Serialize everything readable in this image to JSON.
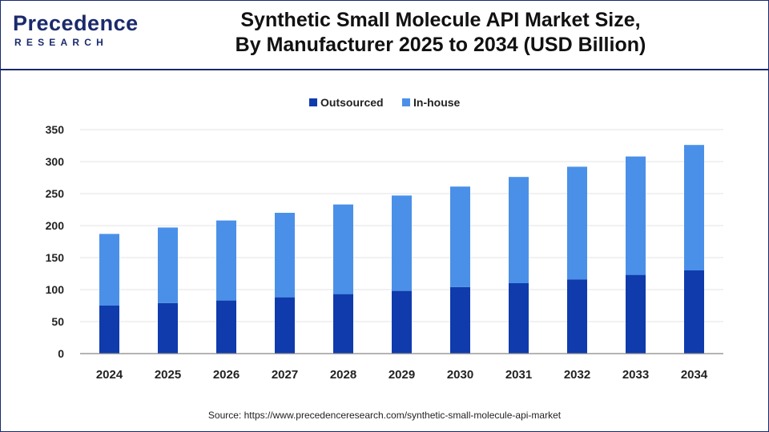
{
  "brand": {
    "logo_text": "Precedence",
    "logo_subtext": "RESEARCH",
    "primary_color": "#1a2a6c"
  },
  "title": {
    "line1": "Synthetic Small Molecule API Market Size,",
    "line2": "By Manufacturer 2025 to 2034 (USD Billion)"
  },
  "source": "Source: https://www.precedenceresearch.com/synthetic-small-molecule-api-market",
  "chart_data": {
    "type": "bar",
    "stacked": true,
    "categories": [
      "2024",
      "2025",
      "2026",
      "2027",
      "2028",
      "2029",
      "2030",
      "2031",
      "2032",
      "2033",
      "2034"
    ],
    "series": [
      {
        "name": "Outsourced",
        "color": "#0f3bad",
        "values": [
          75,
          79,
          83,
          88,
          93,
          98,
          104,
          110,
          116,
          123,
          130
        ]
      },
      {
        "name": "In-house",
        "color": "#4a90e8",
        "values": [
          112,
          118,
          125,
          132,
          140,
          149,
          157,
          166,
          176,
          185,
          196
        ]
      }
    ],
    "ylim": [
      0,
      350
    ],
    "yticks": [
      0,
      50,
      100,
      150,
      200,
      250,
      300,
      350
    ],
    "grid": true,
    "legend_position": "top-center"
  }
}
